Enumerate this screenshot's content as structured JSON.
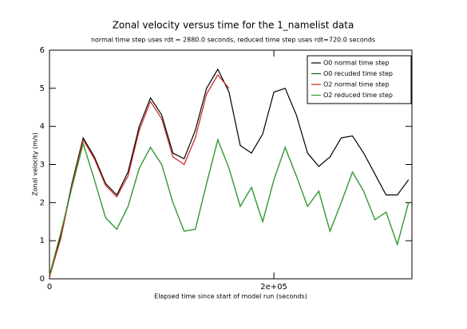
{
  "chart_data": {
    "type": "line",
    "title": "Zonal velocity versus time for the 1_namelist data",
    "subtitle": "normal time step uses rdt = 2880.0 seconds, reduced time step uses rdt=720.0 seconds",
    "xlabel": "Elapsed time since start of model run (seconds)",
    "ylabel": "Zonal velocity  (m/s)",
    "x": [
      0,
      10000,
      20000,
      30000,
      40000,
      50000,
      60000,
      70000,
      80000,
      90000,
      100000,
      110000,
      120000,
      130000,
      140000,
      150000,
      160000,
      170000,
      180000,
      190000,
      200000,
      210000,
      220000,
      230000,
      240000,
      250000,
      260000,
      270000,
      280000,
      290000,
      300000,
      310000,
      320000
    ],
    "series": [
      {
        "name": "O0 normal time step",
        "color": "#000000",
        "values": [
          0.05,
          1.1,
          2.5,
          3.7,
          3.2,
          2.5,
          2.2,
          2.8,
          4.0,
          4.75,
          4.3,
          3.3,
          3.15,
          3.9,
          5.0,
          5.5,
          4.9,
          3.5,
          3.3,
          3.8,
          4.9,
          5.0,
          4.3,
          3.3,
          2.95,
          3.2,
          3.7,
          3.75,
          3.3,
          2.75,
          2.2,
          2.2,
          2.6
        ]
      },
      {
        "name": "O0 recuded time step",
        "color": "#1f5f1f",
        "values": [
          0.1,
          1.2,
          2.4,
          3.55,
          2.6,
          1.6,
          1.3,
          1.9,
          2.9,
          3.45,
          3.0,
          2.0,
          1.25,
          1.3,
          2.5,
          3.65,
          2.9,
          1.9,
          2.4,
          1.5,
          2.6,
          3.45,
          2.7,
          1.9,
          2.3,
          1.25,
          2.0,
          2.8,
          2.3,
          1.55,
          1.75,
          0.9,
          2.0
        ]
      },
      {
        "name": "O2 normal time step",
        "color": "#cc2222",
        "values": [
          0.05,
          1.05,
          2.45,
          3.65,
          3.15,
          2.45,
          2.15,
          2.7,
          3.9,
          4.65,
          4.2,
          3.2,
          3.0,
          3.7,
          4.85,
          5.35,
          5.0,
          null,
          null,
          null,
          null,
          null,
          null,
          null,
          null,
          null,
          null,
          null,
          null,
          null,
          null,
          null,
          null
        ]
      },
      {
        "name": "O2 reduced time step",
        "color": "#2e9e2e",
        "values": [
          0.1,
          1.2,
          2.4,
          3.55,
          2.6,
          1.6,
          1.3,
          1.9,
          2.9,
          3.45,
          3.0,
          2.0,
          1.25,
          1.3,
          2.5,
          3.65,
          2.9,
          1.9,
          2.4,
          1.5,
          2.6,
          3.45,
          2.7,
          1.9,
          2.3,
          1.25,
          2.0,
          2.8,
          2.3,
          1.55,
          1.75,
          0.9,
          2.0
        ]
      }
    ],
    "xlim": [
      0,
      323000
    ],
    "ylim": [
      0,
      6
    ],
    "xticks": [
      0,
      {
        "value": 200000,
        "label": "2e+05"
      }
    ],
    "yticks": [
      0,
      1,
      2,
      3,
      4,
      5,
      6
    ],
    "legend": "top-right",
    "grid": false
  }
}
